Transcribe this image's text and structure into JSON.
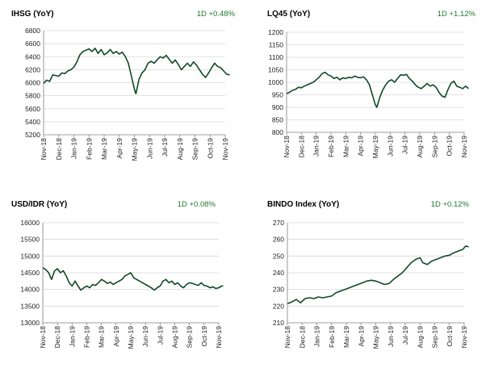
{
  "colors": {
    "line": "#0f4a26",
    "grid": "#d9d9d9",
    "axis": "#808080",
    "change_text": "#1e7a2e"
  },
  "chart_data": [
    {
      "type": "line",
      "title": "IHSG (YoY)",
      "change_label": "1D +0.48%",
      "ylim": [
        5200,
        6800
      ],
      "yticks": [
        "5200",
        "5400",
        "5600",
        "5800",
        "6000",
        "6200",
        "6400",
        "6600",
        "6800"
      ],
      "xticks": [
        "Nov-18",
        "Dec-18",
        "Jan-19",
        "Feb-19",
        "Mar-19",
        "Apr-19",
        "May-19",
        "Jun-19",
        "Jul-19",
        "Aug-19",
        "Sep-19",
        "Oct-19",
        "Nov-19"
      ],
      "grid": true,
      "series": [
        {
          "points": [
            [
              0.0,
              5990
            ],
            [
              0.2,
              6040
            ],
            [
              0.4,
              6020
            ],
            [
              0.6,
              6120
            ],
            [
              0.8,
              6110
            ],
            [
              1.0,
              6100
            ],
            [
              1.2,
              6150
            ],
            [
              1.4,
              6140
            ],
            [
              1.6,
              6180
            ],
            [
              1.8,
              6200
            ],
            [
              2.0,
              6240
            ],
            [
              2.2,
              6320
            ],
            [
              2.4,
              6430
            ],
            [
              2.6,
              6480
            ],
            [
              2.8,
              6500
            ],
            [
              3.0,
              6520
            ],
            [
              3.2,
              6480
            ],
            [
              3.4,
              6530
            ],
            [
              3.6,
              6450
            ],
            [
              3.8,
              6510
            ],
            [
              4.0,
              6430
            ],
            [
              4.2,
              6460
            ],
            [
              4.4,
              6510
            ],
            [
              4.6,
              6450
            ],
            [
              4.8,
              6480
            ],
            [
              5.0,
              6440
            ],
            [
              5.2,
              6470
            ],
            [
              5.4,
              6400
            ],
            [
              5.6,
              6300
            ],
            [
              5.8,
              6100
            ],
            [
              6.0,
              5900
            ],
            [
              6.1,
              5830
            ],
            [
              6.3,
              6050
            ],
            [
              6.5,
              6150
            ],
            [
              6.7,
              6200
            ],
            [
              6.9,
              6300
            ],
            [
              7.1,
              6330
            ],
            [
              7.3,
              6300
            ],
            [
              7.5,
              6350
            ],
            [
              7.7,
              6400
            ],
            [
              7.9,
              6380
            ],
            [
              8.1,
              6420
            ],
            [
              8.3,
              6360
            ],
            [
              8.5,
              6300
            ],
            [
              8.7,
              6350
            ],
            [
              8.9,
              6280
            ],
            [
              9.1,
              6200
            ],
            [
              9.3,
              6250
            ],
            [
              9.5,
              6300
            ],
            [
              9.7,
              6250
            ],
            [
              9.9,
              6320
            ],
            [
              10.1,
              6270
            ],
            [
              10.3,
              6200
            ],
            [
              10.5,
              6130
            ],
            [
              10.7,
              6080
            ],
            [
              10.9,
              6150
            ],
            [
              11.1,
              6230
            ],
            [
              11.3,
              6300
            ],
            [
              11.5,
              6250
            ],
            [
              11.7,
              6230
            ],
            [
              11.9,
              6180
            ],
            [
              12.1,
              6130
            ],
            [
              12.3,
              6120
            ]
          ]
        }
      ]
    },
    {
      "type": "line",
      "title": "LQ45 (YoY)",
      "change_label": "1D +1.12%",
      "ylim": [
        800,
        1200
      ],
      "yticks": [
        "800",
        "850",
        "900",
        "950",
        "1000",
        "1050",
        "1100",
        "1150",
        "1200"
      ],
      "xticks": [
        "Nov-18",
        "Dec-18",
        "Jan-19",
        "Feb-19",
        "Mar-19",
        "Apr-19",
        "May-19",
        "Jun-19",
        "Jul-19",
        "Aug-19",
        "Sep-19",
        "Oct-19",
        "Nov-19"
      ],
      "grid": true,
      "series": [
        {
          "points": [
            [
              0.0,
              955
            ],
            [
              0.2,
              960
            ],
            [
              0.4,
              968
            ],
            [
              0.6,
              972
            ],
            [
              0.8,
              980
            ],
            [
              1.0,
              978
            ],
            [
              1.2,
              985
            ],
            [
              1.4,
              990
            ],
            [
              1.6,
              995
            ],
            [
              1.8,
              1000
            ],
            [
              2.0,
              1010
            ],
            [
              2.2,
              1020
            ],
            [
              2.4,
              1035
            ],
            [
              2.6,
              1040
            ],
            [
              2.8,
              1030
            ],
            [
              3.0,
              1025
            ],
            [
              3.2,
              1015
            ],
            [
              3.4,
              1020
            ],
            [
              3.6,
              1010
            ],
            [
              3.8,
              1018
            ],
            [
              4.0,
              1015
            ],
            [
              4.2,
              1020
            ],
            [
              4.4,
              1018
            ],
            [
              4.6,
              1025
            ],
            [
              4.8,
              1020
            ],
            [
              5.0,
              1018
            ],
            [
              5.2,
              1022
            ],
            [
              5.4,
              1010
            ],
            [
              5.6,
              990
            ],
            [
              5.8,
              950
            ],
            [
              6.0,
              910
            ],
            [
              6.1,
              900
            ],
            [
              6.3,
              940
            ],
            [
              6.5,
              970
            ],
            [
              6.7,
              990
            ],
            [
              6.9,
              1005
            ],
            [
              7.1,
              1010
            ],
            [
              7.3,
              1000
            ],
            [
              7.5,
              1015
            ],
            [
              7.7,
              1030
            ],
            [
              7.9,
              1028
            ],
            [
              8.1,
              1032
            ],
            [
              8.3,
              1015
            ],
            [
              8.5,
              1005
            ],
            [
              8.7,
              990
            ],
            [
              8.9,
              980
            ],
            [
              9.1,
              975
            ],
            [
              9.3,
              985
            ],
            [
              9.5,
              995
            ],
            [
              9.7,
              985
            ],
            [
              9.9,
              990
            ],
            [
              10.1,
              980
            ],
            [
              10.3,
              960
            ],
            [
              10.5,
              945
            ],
            [
              10.7,
              940
            ],
            [
              10.9,
              970
            ],
            [
              11.1,
              995
            ],
            [
              11.3,
              1005
            ],
            [
              11.5,
              985
            ],
            [
              11.7,
              980
            ],
            [
              11.9,
              975
            ],
            [
              12.1,
              985
            ],
            [
              12.3,
              975
            ]
          ]
        }
      ]
    },
    {
      "type": "line",
      "title": "USD/IDR  (YoY)",
      "change_label": "1D +0.08%",
      "ylim": [
        13000,
        16000
      ],
      "yticks": [
        "13000",
        "13500",
        "14000",
        "14500",
        "15000",
        "15500",
        "16000"
      ],
      "xticks": [
        "Nov-18",
        "Dec-18",
        "Jan-19",
        "Feb-19",
        "Mar-19",
        "Apr-19",
        "May-19",
        "Jun-19",
        "Jul-19",
        "Aug-19",
        "Sep-19",
        "Oct-19",
        "Nov-19"
      ],
      "grid": true,
      "series": [
        {
          "points": [
            [
              0.0,
              14650
            ],
            [
              0.2,
              14600
            ],
            [
              0.4,
              14500
            ],
            [
              0.6,
              14300
            ],
            [
              0.8,
              14550
            ],
            [
              1.0,
              14620
            ],
            [
              1.2,
              14500
            ],
            [
              1.4,
              14560
            ],
            [
              1.6,
              14400
            ],
            [
              1.8,
              14200
            ],
            [
              2.0,
              14100
            ],
            [
              2.2,
              14250
            ],
            [
              2.4,
              14100
            ],
            [
              2.6,
              13980
            ],
            [
              2.8,
              14050
            ],
            [
              3.0,
              14100
            ],
            [
              3.2,
              14050
            ],
            [
              3.4,
              14150
            ],
            [
              3.6,
              14120
            ],
            [
              3.8,
              14200
            ],
            [
              4.0,
              14300
            ],
            [
              4.2,
              14250
            ],
            [
              4.4,
              14180
            ],
            [
              4.6,
              14220
            ],
            [
              4.8,
              14150
            ],
            [
              5.0,
              14200
            ],
            [
              5.2,
              14250
            ],
            [
              5.4,
              14300
            ],
            [
              5.6,
              14400
            ],
            [
              5.8,
              14450
            ],
            [
              6.0,
              14500
            ],
            [
              6.2,
              14350
            ],
            [
              6.4,
              14300
            ],
            [
              6.6,
              14250
            ],
            [
              6.8,
              14200
            ],
            [
              7.0,
              14150
            ],
            [
              7.2,
              14100
            ],
            [
              7.4,
              14050
            ],
            [
              7.6,
              13980
            ],
            [
              7.8,
              14050
            ],
            [
              8.0,
              14100
            ],
            [
              8.2,
              14250
            ],
            [
              8.4,
              14300
            ],
            [
              8.6,
              14200
            ],
            [
              8.8,
              14250
            ],
            [
              9.0,
              14150
            ],
            [
              9.2,
              14200
            ],
            [
              9.4,
              14100
            ],
            [
              9.6,
              14050
            ],
            [
              9.8,
              14150
            ],
            [
              10.0,
              14200
            ],
            [
              10.2,
              14180
            ],
            [
              10.4,
              14150
            ],
            [
              10.6,
              14120
            ],
            [
              10.8,
              14200
            ],
            [
              11.0,
              14120
            ],
            [
              11.2,
              14100
            ],
            [
              11.4,
              14050
            ],
            [
              11.6,
              14080
            ],
            [
              11.8,
              14030
            ],
            [
              12.0,
              14050
            ],
            [
              12.2,
              14100
            ],
            [
              12.3,
              14110
            ]
          ]
        }
      ]
    },
    {
      "type": "line",
      "title": "BINDO Index (YoY)",
      "change_label": "1D +0.12%",
      "ylim": [
        210,
        270
      ],
      "yticks": [
        "210",
        "220",
        "230",
        "240",
        "250",
        "260",
        "270"
      ],
      "xticks": [
        "Nov-18",
        "Dec-18",
        "Jan-19",
        "Feb-19",
        "Mar-19",
        "Apr-19",
        "May-19",
        "Jun-19",
        "Jul-19",
        "Aug-19",
        "Sep-19",
        "Oct-19",
        "Nov-19"
      ],
      "grid": true,
      "series": [
        {
          "points": [
            [
              0.0,
              221.5
            ],
            [
              0.3,
              222.5
            ],
            [
              0.6,
              224
            ],
            [
              0.9,
              222
            ],
            [
              1.2,
              224.5
            ],
            [
              1.5,
              225
            ],
            [
              1.8,
              224.5
            ],
            [
              2.1,
              225.5
            ],
            [
              2.4,
              225
            ],
            [
              2.7,
              225.5
            ],
            [
              3.0,
              226
            ],
            [
              3.3,
              228
            ],
            [
              3.6,
              229
            ],
            [
              3.9,
              230
            ],
            [
              4.2,
              231
            ],
            [
              4.5,
              232
            ],
            [
              4.8,
              233
            ],
            [
              5.1,
              234
            ],
            [
              5.4,
              235
            ],
            [
              5.7,
              235.5
            ],
            [
              6.0,
              235
            ],
            [
              6.3,
              234
            ],
            [
              6.6,
              233
            ],
            [
              6.9,
              233.5
            ],
            [
              7.2,
              236
            ],
            [
              7.5,
              238
            ],
            [
              7.8,
              240
            ],
            [
              8.1,
              243
            ],
            [
              8.4,
              246
            ],
            [
              8.7,
              248
            ],
            [
              9.0,
              249
            ],
            [
              9.2,
              246
            ],
            [
              9.5,
              245
            ],
            [
              9.8,
              247
            ],
            [
              10.1,
              248
            ],
            [
              10.4,
              249
            ],
            [
              10.7,
              250
            ],
            [
              11.0,
              250.5
            ],
            [
              11.3,
              252
            ],
            [
              11.6,
              253
            ],
            [
              11.9,
              254
            ],
            [
              12.1,
              256
            ],
            [
              12.3,
              255.5
            ]
          ]
        }
      ]
    }
  ]
}
